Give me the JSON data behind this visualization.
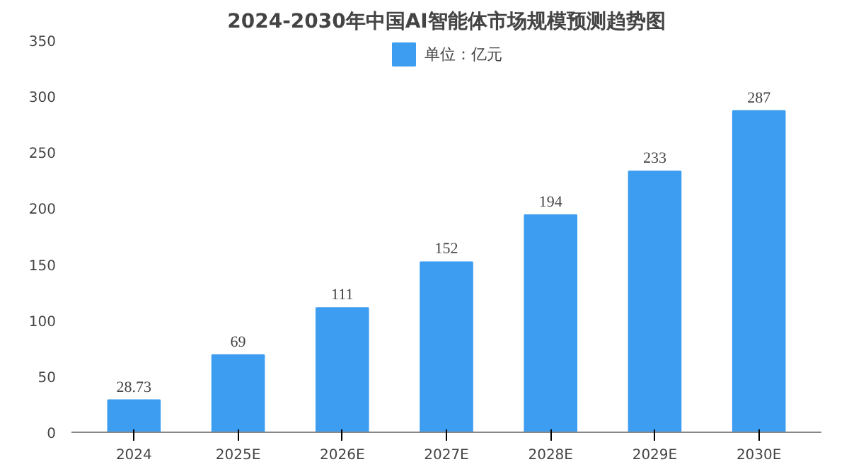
{
  "chart_data": {
    "type": "bar",
    "title": "2024-2030年中国AI智能体市场规模预测趋势图",
    "categories": [
      "2024",
      "2025E",
      "2026E",
      "2027E",
      "2028E",
      "2029E",
      "2030E"
    ],
    "series": [
      {
        "name": "单位：亿元",
        "color": "#3d9df0",
        "values": [
          28.73,
          69,
          111,
          152,
          194,
          233,
          287
        ]
      }
    ],
    "ylim": [
      0,
      350
    ],
    "yticks": [
      0,
      50,
      100,
      150,
      200,
      250,
      300,
      350
    ],
    "data_labels": true,
    "legend": "top"
  }
}
